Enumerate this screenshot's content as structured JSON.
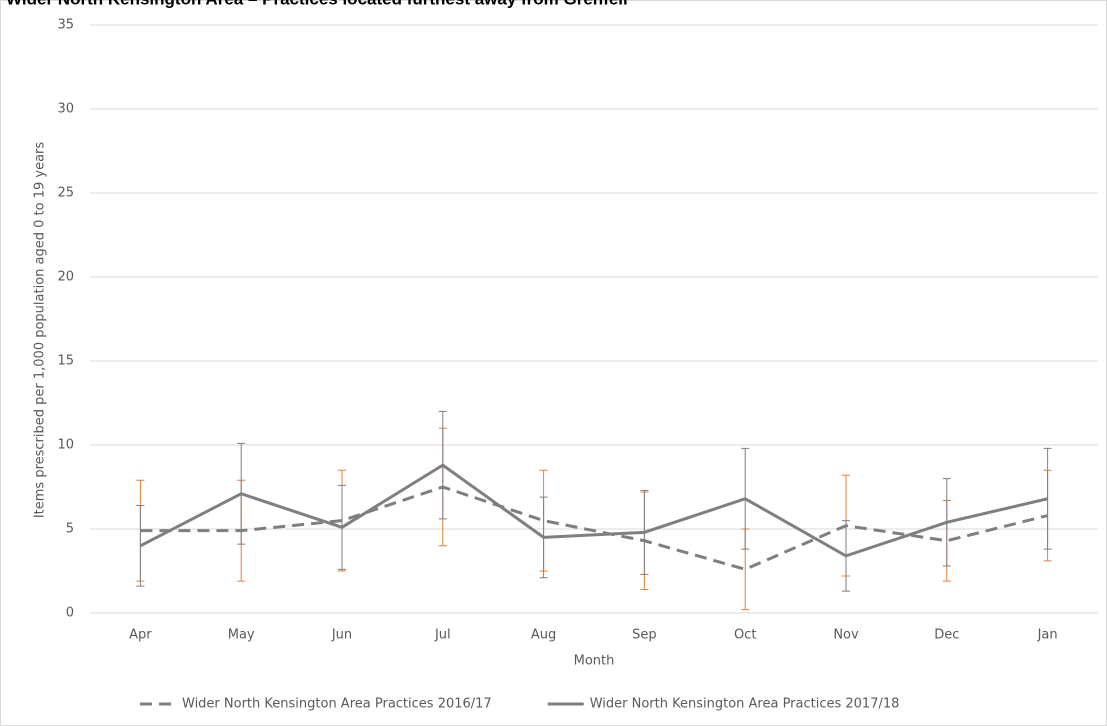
{
  "chart_data": {
    "type": "line",
    "title": "Wider North Kensington Area – Practices located furthest away from Grenfell",
    "x_label": "Month",
    "y_label": "Items prescribed per 1,000 population aged 0 to 19 years",
    "categories": [
      "Apr",
      "May",
      "Jun",
      "Jul",
      "Aug",
      "Sep",
      "Oct",
      "Nov",
      "Dec",
      "Jan"
    ],
    "series": [
      {
        "name": "Wider North Kensington Area Practices 2016/17",
        "color": "#7f7f7f",
        "dash": true,
        "error_color": "#ed7d31",
        "values": [
          4.9,
          4.9,
          5.5,
          7.5,
          5.5,
          4.3,
          2.6,
          5.2,
          4.3,
          5.8
        ],
        "errors": [
          3.0,
          3.0,
          3.0,
          3.5,
          3.0,
          2.9,
          2.4,
          3.0,
          2.4,
          2.7
        ]
      },
      {
        "name": "Wider North Kensington Area Practices 2017/18",
        "color": "#7f7f7f",
        "dash": false,
        "error_color": "#7f7f7f",
        "values": [
          4.0,
          7.1,
          5.1,
          8.8,
          4.5,
          4.8,
          6.8,
          3.4,
          5.4,
          6.8
        ],
        "errors": [
          2.4,
          3.0,
          2.5,
          3.2,
          2.4,
          2.5,
          3.0,
          2.1,
          2.6,
          3.0
        ]
      }
    ],
    "ylim": [
      0,
      35
    ],
    "yticks": [
      0,
      5,
      10,
      15,
      20,
      25,
      30,
      35
    ],
    "grid": true,
    "legend": "bottom"
  }
}
